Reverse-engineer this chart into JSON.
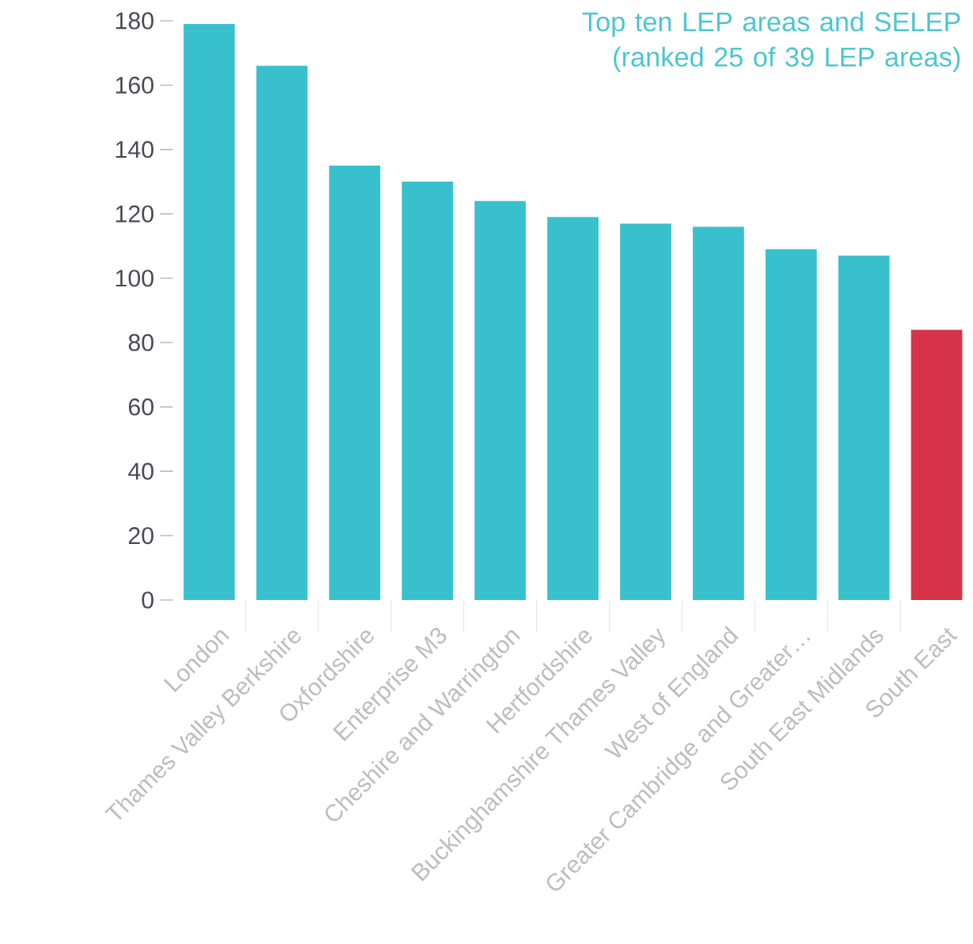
{
  "chart_data": {
    "type": "bar",
    "title": "Top ten LEP areas and SELEP (ranked 25 of 39 LEP areas)",
    "categories": [
      "London",
      "Thames Valley Berkshire",
      "Oxfordshire",
      "Enterprise M3",
      "Cheshire and Warrington",
      "Hertfordshire",
      "Buckinghamshire Thames Valley",
      "West of England",
      "Greater Cambridge and Greater…",
      "South East Midlands",
      "South East"
    ],
    "values": [
      179,
      166,
      135,
      130,
      124,
      119,
      117,
      116,
      109,
      107,
      84
    ],
    "colors": [
      "#38c1cc",
      "#38c1cc",
      "#38c1cc",
      "#38c1cc",
      "#38c1cc",
      "#38c1cc",
      "#38c1cc",
      "#38c1cc",
      "#38c1cc",
      "#38c1cc",
      "#d4334a"
    ],
    "ylim": [
      0,
      180
    ],
    "yticks": [
      0,
      20,
      40,
      60,
      80,
      100,
      120,
      140,
      160,
      180
    ]
  }
}
